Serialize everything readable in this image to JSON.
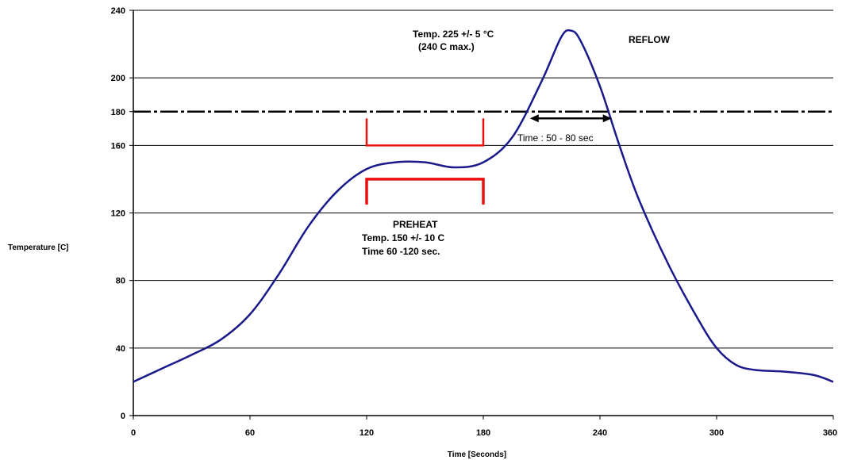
{
  "chart_data": {
    "type": "line",
    "title": "",
    "xlabel": "Time [Seconds]",
    "ylabel": "Temperature [C]",
    "xlim": [
      0,
      360
    ],
    "ylim": [
      0,
      240
    ],
    "x_ticks": [
      0,
      60,
      120,
      180,
      240,
      300,
      360
    ],
    "y_ticks": [
      0,
      40,
      80,
      120,
      160,
      180,
      200,
      240
    ],
    "x_tick_labels": [
      "0",
      "60",
      "120",
      "180",
      "240",
      "300",
      "360"
    ],
    "y_tick_labels": [
      "0",
      "40",
      "80",
      "120",
      "160",
      "180",
      "200",
      "240"
    ],
    "grid_y": [
      40,
      80,
      120,
      160,
      200
    ],
    "dashed_line_y": 180,
    "series": [
      {
        "color": "#1a1a8c",
        "x": [
          0,
          15,
          30,
          45,
          60,
          75,
          90,
          105,
          120,
          135,
          150,
          165,
          180,
          195,
          210,
          220,
          225,
          230,
          240,
          250,
          260,
          275,
          290,
          300,
          310,
          320,
          335,
          350,
          360
        ],
        "y": [
          20,
          28,
          36,
          45,
          60,
          84,
          112,
          133,
          146,
          150,
          150,
          147,
          150,
          165,
          198,
          224,
          228,
          222,
          195,
          160,
          128,
          90,
          58,
          40,
          30,
          27,
          26,
          24,
          20
        ]
      }
    ],
    "annotations": {
      "peak_line1": "Temp.   225   +/- 5   °C",
      "peak_line2": "(240 C max.)",
      "reflow_label": "REFLOW",
      "time_above_label": "Time : 50 - 80 sec",
      "preheat_title": "PREHEAT",
      "preheat_temp": "Temp.   150  +/- 10 C",
      "preheat_time": "Time      60 -120 sec."
    },
    "bracket_color": "#e81010",
    "preheat_bracket_x": [
      120,
      180
    ],
    "preheat_bracket_upper_y": 160,
    "preheat_bracket_lower_y": 140,
    "time_above_arrow_x": [
      204,
      246
    ],
    "time_above_arrow_y": 176
  }
}
